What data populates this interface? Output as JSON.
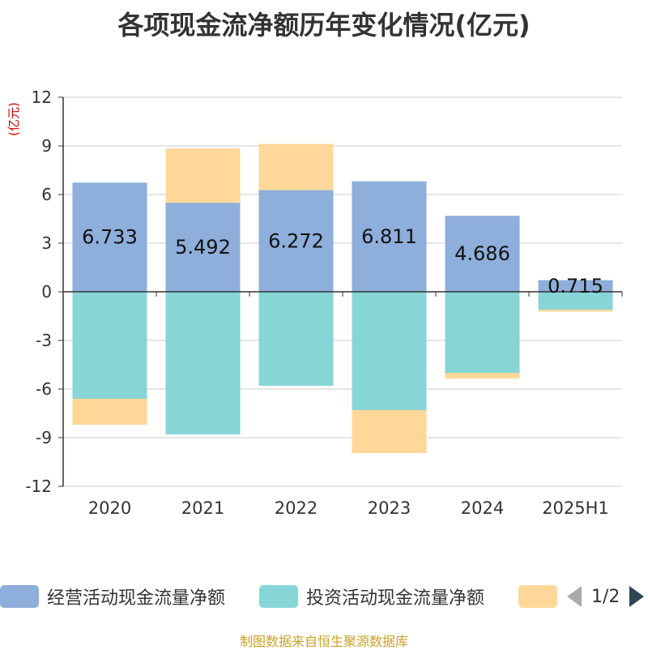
{
  "title": "各项现金流净额历年变化情况(亿元)",
  "source_note": "制图数据来自恒生聚源数据库",
  "legend": {
    "items": [
      {
        "label": "经营活动现金流量净额",
        "color": "#8eaedb"
      },
      {
        "label": "投资活动现金流量净额",
        "color": "#87d5d7"
      },
      {
        "label": "",
        "color": "#ffd899"
      }
    ],
    "page_text": "1/2"
  },
  "chart_data": {
    "type": "bar",
    "stacked": true,
    "categories": [
      "2020",
      "2021",
      "2022",
      "2023",
      "2024",
      "2025H1"
    ],
    "ylabel": "(亿元)",
    "ylim": [
      -12,
      12
    ],
    "yticks": [
      12,
      9,
      6,
      3,
      0,
      -3,
      -6,
      -9,
      -12
    ],
    "grid": true,
    "legend_position": "bottom",
    "series": [
      {
        "name": "经营活动现金流量净额",
        "color": "#8eaedb",
        "values": [
          6.733,
          5.492,
          6.272,
          6.811,
          4.686,
          0.715
        ],
        "labels": [
          "6.733",
          "5.492",
          "6.272",
          "6.811",
          "4.686",
          "0.715"
        ]
      },
      {
        "name": "投资活动现金流量净额",
        "color": "#87d5d7",
        "values": [
          -6.6,
          -8.8,
          -5.8,
          -7.3,
          -5.0,
          -1.1
        ]
      },
      {
        "color": "#ffd899",
        "values": [
          -1.6,
          3.35,
          2.85,
          -2.65,
          -0.35,
          -0.12
        ]
      }
    ]
  }
}
